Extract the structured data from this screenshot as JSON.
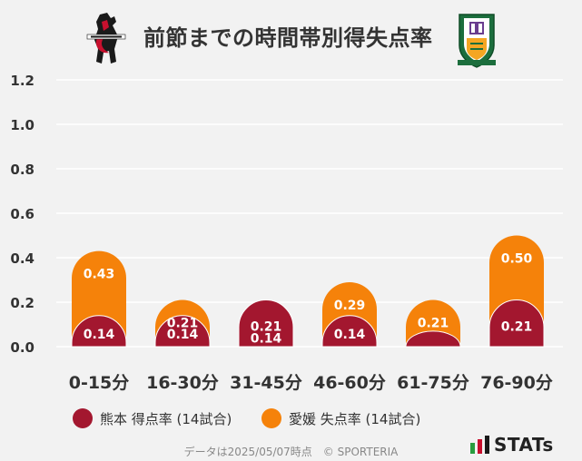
{
  "title": "前節までの時間帯別得失点率",
  "colors": {
    "home": "#a3172f",
    "away": "#f5820a",
    "background": "#f2f2f2",
    "grid": "#ffffff"
  },
  "chart_data": {
    "type": "bar",
    "stacked": "overlay",
    "categories": [
      "0-15分",
      "16-30分",
      "31-45分",
      "46-60分",
      "61-75分",
      "76-90分"
    ],
    "series": [
      {
        "name": "熊本 得点率 (14試合)",
        "values": [
          0.14,
          0.14,
          0.21,
          0.14,
          0.07,
          0.21
        ],
        "labels": [
          "0.14",
          "0.14",
          "0.21",
          "0.14",
          "",
          "0.21"
        ]
      },
      {
        "name": "愛媛 失点率 (14試合)",
        "values": [
          0.43,
          0.21,
          0.14,
          0.29,
          0.21,
          0.5
        ],
        "labels": [
          "0.43",
          "0.21",
          "0.14",
          "0.29",
          "0.21",
          "0.50"
        ]
      }
    ],
    "yticks": [
      "0.0",
      "0.2",
      "0.4",
      "0.6",
      "0.8",
      "1.0",
      "1.2"
    ],
    "ylim": [
      0,
      1.2
    ],
    "grid": true
  },
  "legend": {
    "home_label": "熊本 得点率 (14試合)",
    "away_label": "愛媛 失点率 (14試合)"
  },
  "footer": "データは2025/05/07時点　© SPORTERIA",
  "brand": "STATs"
}
